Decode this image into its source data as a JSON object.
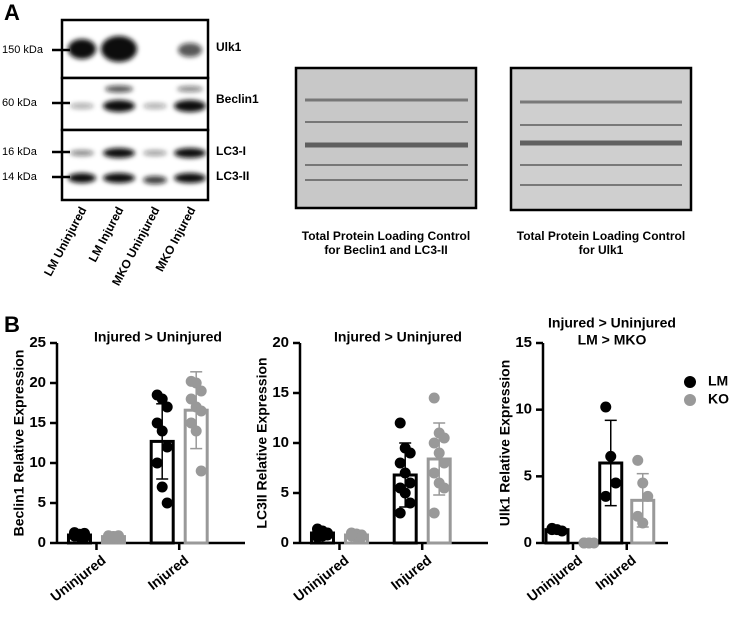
{
  "blots": {
    "panel_label": "A",
    "markers": [
      "150 kDa",
      "60 kDa",
      "16 kDa",
      "14 kDa"
    ],
    "proteins": [
      "Ulk1",
      "Beclin1",
      "LC3-I",
      "LC3-II"
    ],
    "lanes": [
      "LM Uninjured",
      "LM Injured",
      "MKO Uninjured",
      "MKO Injured"
    ],
    "loading_controls": [
      [
        "Total Protein Loading Control",
        "for Beclin1 and LC3-II"
      ],
      [
        "Total Protein Loading Control",
        "for Ulk1"
      ]
    ]
  },
  "panel_b_label": "B",
  "chart_data": [
    {
      "type": "bar",
      "title": "Injured > Uninjured",
      "y_label": "Beclin1 Relative Expression",
      "categories": [
        "Uninjured",
        "Injured"
      ],
      "ylim": [
        0,
        25
      ],
      "yticks": [
        0,
        5,
        10,
        15,
        20,
        25
      ],
      "series": [
        {
          "color": "#000000",
          "values": [
            1,
            12.7
          ],
          "errors": [
            0.3,
            4.7
          ],
          "points": [
            [
              1.3,
              1.1,
              1,
              0.9,
              0.8,
              0.7,
              0.9,
              1,
              1.2
            ],
            [
              18.5,
              18,
              17,
              15,
              14,
              12,
              10,
              7,
              5
            ]
          ]
        },
        {
          "color": "#999999",
          "values": [
            0.8,
            16.6
          ],
          "errors": [
            0.2,
            4.8
          ],
          "points": [
            [
              0.9,
              0.8,
              0.7,
              0.6,
              0.8,
              0.9,
              0.7,
              0.8,
              0.6
            ],
            [
              20.2,
              20,
              19,
              18,
              17,
              16.5,
              15,
              14,
              9
            ]
          ]
        }
      ]
    },
    {
      "type": "bar",
      "title": "Injured > Uninjured",
      "y_label": "LC3II Relative Expression",
      "categories": [
        "Uninjured",
        "Injured"
      ],
      "ylim": [
        0,
        20
      ],
      "yticks": [
        0,
        5,
        10,
        15,
        20
      ],
      "series": [
        {
          "color": "#000000",
          "values": [
            1,
            6.8
          ],
          "errors": [
            0.3,
            3.2
          ],
          "points": [
            [
              1.4,
              1.2,
              1,
              0.9,
              0.7,
              0.8,
              1,
              1.1,
              0.9,
              0.6
            ],
            [
              12,
              9.5,
              9,
              8,
              7,
              6,
              5.5,
              5,
              4,
              3
            ]
          ]
        },
        {
          "color": "#999999",
          "values": [
            0.8,
            8.4
          ],
          "errors": [
            0.2,
            3.6
          ],
          "points": [
            [
              1,
              0.9,
              0.8,
              0.7,
              0.6,
              0.8,
              0.9,
              0.7,
              0.6,
              0.8
            ],
            [
              14.5,
              11,
              10.5,
              10,
              9,
              8,
              7,
              6,
              5.5,
              3
            ]
          ]
        }
      ]
    },
    {
      "type": "bar",
      "title": "Injured > Uninjured",
      "subtitle": "LM > MKO",
      "y_label": "Ulk1 Relative Expression",
      "categories": [
        "Uninjured",
        "Injured"
      ],
      "ylim": [
        0,
        15
      ],
      "yticks": [
        0,
        5,
        10,
        15
      ],
      "series": [
        {
          "name": "LM",
          "color": "#000000",
          "values": [
            1,
            6
          ],
          "errors": [
            0.1,
            3.2
          ],
          "points": [
            [
              1.1,
              1,
              0.9,
              1
            ],
            [
              10.2,
              6.5,
              4.5,
              3.5
            ]
          ]
        },
        {
          "name": "KO",
          "color": "#999999",
          "values": [
            0,
            3.2
          ],
          "errors": [
            0,
            2
          ],
          "points": [
            [
              0,
              0,
              0,
              0,
              0
            ],
            [
              6.2,
              4.5,
              3.5,
              2,
              1.5
            ]
          ]
        }
      ]
    }
  ]
}
